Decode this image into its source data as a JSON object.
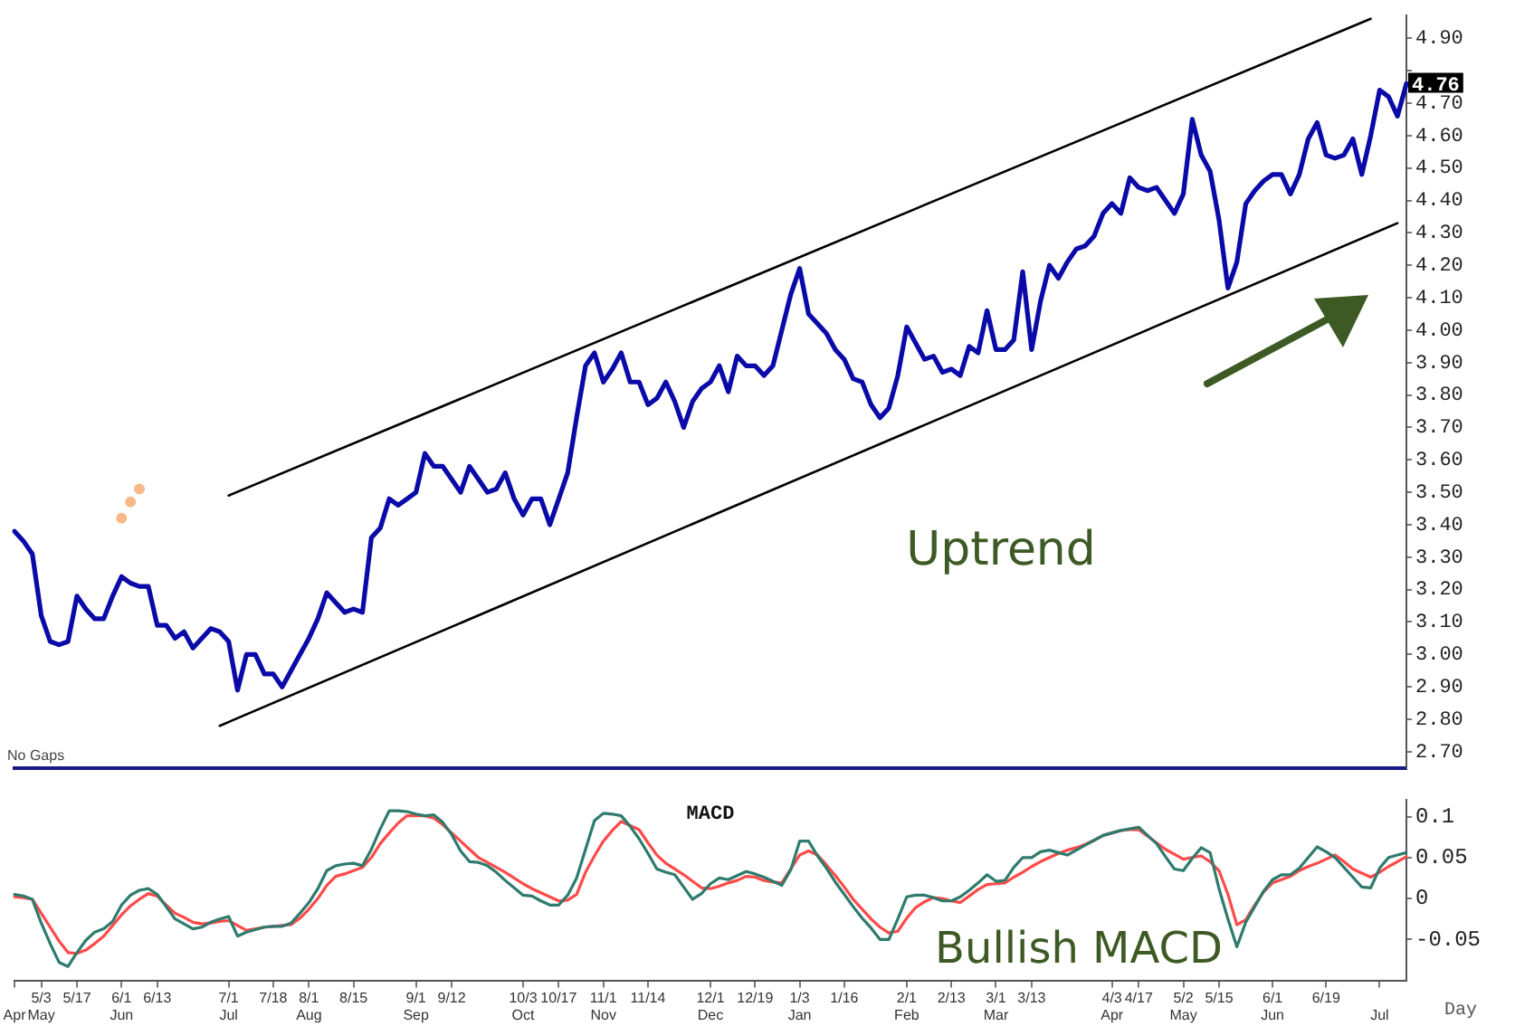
{
  "chart_data": [
    {
      "type": "line",
      "categories": [
        null,
        null,
        null,
        null,
        null,
        null,
        null,
        null,
        null,
        null,
        null,
        null,
        null,
        null,
        null,
        null,
        null,
        null,
        null,
        null,
        null,
        null,
        null,
        null,
        null,
        null,
        null,
        null,
        null,
        null,
        null,
        null,
        null,
        null,
        null,
        null,
        null,
        null,
        null,
        null,
        null,
        null,
        null,
        null,
        null,
        null,
        null,
        null,
        null,
        null,
        null,
        null,
        null,
        null,
        null,
        null,
        null,
        null,
        null,
        null,
        null,
        null,
        null,
        null,
        null,
        null,
        null,
        null,
        null,
        null,
        null,
        null,
        null,
        null,
        null,
        null,
        null,
        null,
        null,
        null,
        null,
        null,
        null,
        null,
        null,
        null,
        null,
        null,
        null,
        null,
        null,
        null,
        null,
        null,
        null,
        null,
        null,
        null,
        null,
        null,
        null,
        null,
        null,
        null,
        null,
        null,
        null,
        null,
        null,
        null,
        null,
        null,
        null,
        null,
        null,
        null,
        null,
        null,
        null,
        null,
        null,
        null,
        null,
        null,
        null,
        null,
        null,
        null,
        null,
        null,
        null,
        null,
        null,
        null,
        null,
        null,
        null,
        null,
        null,
        null,
        null,
        null,
        null,
        null,
        null,
        null,
        null,
        null,
        null,
        null,
        null,
        null,
        null,
        null,
        null,
        null,
        null
      ],
      "series": [
        {
          "color": "#0a0aa8",
          "values": [
            3.38,
            3.35,
            3.31,
            3.12,
            3.04,
            3.03,
            3.04,
            3.18,
            3.14,
            3.11,
            3.11,
            3.18,
            3.24,
            3.22,
            3.21,
            3.21,
            3.09,
            3.09,
            3.05,
            3.07,
            3.02,
            3.05,
            3.08,
            3.07,
            3.04,
            2.89,
            3.0,
            3.0,
            2.94,
            2.94,
            2.9,
            2.95,
            3.0,
            3.05,
            3.11,
            3.19,
            3.16,
            3.13,
            3.14,
            3.13,
            3.36,
            3.39,
            3.48,
            3.46,
            3.48,
            3.5,
            3.62,
            3.58,
            3.58,
            3.54,
            3.5,
            3.58,
            3.54,
            3.5,
            3.51,
            3.56,
            3.48,
            3.43,
            3.48,
            3.48,
            3.4,
            3.48,
            3.56,
            3.73,
            3.89,
            3.93,
            3.84,
            3.88,
            3.93,
            3.84,
            3.84,
            3.77,
            3.79,
            3.84,
            3.78,
            3.7,
            3.78,
            3.82,
            3.84,
            3.89,
            3.81,
            3.92,
            3.89,
            3.89,
            3.86,
            3.89,
            4.0,
            4.11,
            4.19,
            4.05,
            4.02,
            3.99,
            3.94,
            3.91,
            3.85,
            3.84,
            3.77,
            3.73,
            3.76,
            3.86,
            4.01,
            3.96,
            3.91,
            3.92,
            3.87,
            3.88,
            3.86,
            3.95,
            3.93,
            4.06,
            3.94,
            3.94,
            3.97,
            4.18,
            3.94,
            4.09,
            4.2,
            4.16,
            4.21,
            4.25,
            4.26,
            4.29,
            4.36,
            4.39,
            4.36,
            4.47,
            4.44,
            4.43,
            4.44,
            4.4,
            4.36,
            4.42,
            4.65,
            4.54,
            4.49,
            4.34,
            4.13,
            4.21,
            4.39,
            4.43,
            4.46,
            4.48,
            4.48,
            4.42,
            4.48,
            4.59,
            4.64,
            4.54,
            4.53,
            4.54,
            4.59,
            4.48,
            4.6,
            4.74,
            4.72,
            4.66,
            4.76
          ]
        },
        {
          "type": "line",
          "color": "#000000",
          "values": [
            null,
            null,
            null,
            null,
            null,
            null,
            null,
            null,
            null,
            null,
            null,
            null,
            null,
            null,
            null,
            null,
            null,
            null,
            null,
            null,
            null,
            null,
            null,
            null,
            3.49,
            null,
            null,
            null,
            null,
            null,
            null,
            null,
            null,
            null,
            null,
            null,
            null,
            null,
            null,
            null,
            null,
            null,
            null,
            null,
            null,
            null,
            null,
            null,
            null,
            null,
            null,
            null,
            null,
            null,
            null,
            null,
            null,
            null,
            null,
            null,
            null,
            null,
            null,
            null,
            null,
            null,
            null,
            null,
            null,
            null,
            null,
            null,
            null,
            null,
            null,
            null,
            null,
            null,
            null,
            null,
            null,
            null,
            null,
            null,
            null,
            null,
            null,
            null,
            null,
            null,
            null,
            null,
            null,
            null,
            null,
            null,
            null,
            null,
            null,
            null,
            null,
            null,
            null,
            null,
            null,
            null,
            null,
            null,
            null,
            null,
            null,
            null,
            null,
            null,
            null,
            null,
            null,
            null,
            null,
            null,
            null,
            null,
            null,
            null,
            null,
            null,
            null,
            null,
            null,
            null,
            null,
            null,
            null,
            null,
            null,
            null,
            null,
            null,
            null,
            null,
            null,
            null,
            null,
            null,
            null,
            null,
            null,
            null,
            null,
            null,
            null,
            null,
            4.96,
            null,
            null,
            null,
            null
          ]
        },
        {
          "type": "line",
          "color": "#000000",
          "values": [
            null,
            null,
            null,
            null,
            null,
            null,
            null,
            null,
            null,
            null,
            null,
            null,
            null,
            null,
            null,
            null,
            null,
            null,
            null,
            null,
            null,
            null,
            null,
            2.78,
            null,
            null,
            null,
            null,
            null,
            null,
            null,
            null,
            null,
            null,
            null,
            null,
            null,
            null,
            null,
            null,
            null,
            null,
            null,
            null,
            null,
            null,
            null,
            null,
            null,
            null,
            null,
            null,
            null,
            null,
            null,
            null,
            null,
            null,
            null,
            null,
            null,
            null,
            null,
            null,
            null,
            null,
            null,
            null,
            null,
            null,
            null,
            null,
            null,
            null,
            null,
            null,
            null,
            null,
            null,
            null,
            null,
            null,
            null,
            null,
            null,
            null,
            null,
            null,
            null,
            null,
            null,
            null,
            null,
            null,
            null,
            null,
            null,
            null,
            null,
            null,
            null,
            null,
            null,
            null,
            null,
            null,
            null,
            null,
            null,
            null,
            null,
            null,
            null,
            null,
            null,
            null,
            null,
            null,
            null,
            null,
            null,
            null,
            null,
            null,
            null,
            null,
            null,
            null,
            null,
            null,
            null,
            null,
            null,
            null,
            null,
            null,
            null,
            null,
            null,
            null,
            null,
            null,
            null,
            null,
            null,
            null,
            null,
            null,
            null,
            null,
            null,
            null,
            null,
            null,
            null,
            4.33,
            null
          ]
        },
        {
          "type": "scatter",
          "color": "#f7b98a",
          "values": [
            null,
            null,
            null,
            null,
            null,
            null,
            null,
            null,
            null,
            null,
            null,
            null,
            3.42,
            3.47,
            3.51,
            null,
            null,
            null,
            null,
            null,
            null,
            null,
            null,
            null,
            null,
            null,
            null,
            null,
            null,
            null,
            null,
            null,
            null,
            null,
            null,
            null,
            null,
            null,
            null,
            null,
            null,
            null,
            null,
            null,
            null,
            null,
            null,
            null,
            null,
            null,
            null,
            null,
            null,
            null,
            null,
            null,
            null,
            null,
            null,
            null,
            null,
            null,
            null,
            null,
            null,
            null,
            null,
            null,
            null,
            null,
            null,
            null,
            null,
            null,
            null,
            null,
            null,
            null,
            null,
            null,
            null,
            null,
            null,
            null,
            null,
            null,
            null,
            null,
            null,
            null,
            null,
            null,
            null,
            null,
            null,
            null,
            null,
            null,
            null,
            null,
            null,
            null,
            null,
            null,
            null,
            null,
            null,
            null,
            null,
            null,
            null,
            null,
            null,
            null,
            null,
            null,
            null,
            null,
            null,
            null,
            null,
            null,
            null,
            null,
            null,
            null,
            null,
            null,
            null,
            null,
            null,
            null,
            null,
            null,
            null,
            null,
            null,
            null,
            null,
            null,
            null,
            null,
            null,
            null,
            null,
            null,
            null,
            null,
            null,
            null,
            null,
            null,
            null,
            null,
            null,
            null,
            null
          ]
        }
      ],
      "ylim": [
        2.65,
        4.97
      ],
      "yticks": [
        {
          "value": 2.7,
          "label": "2.70"
        },
        {
          "value": 2.8,
          "label": "2.80"
        },
        {
          "value": 2.9,
          "label": "2.90"
        },
        {
          "value": 3.0,
          "label": "3.00"
        },
        {
          "value": 3.1,
          "label": "3.10"
        },
        {
          "value": 3.2,
          "label": "3.20"
        },
        {
          "value": 3.3,
          "label": "3.30"
        },
        {
          "value": 3.4,
          "label": "3.40"
        },
        {
          "value": 3.5,
          "label": "3.50"
        },
        {
          "value": 3.6,
          "label": "3.60"
        },
        {
          "value": 3.7,
          "label": "3.70"
        },
        {
          "value": 3.8,
          "label": "3.80"
        },
        {
          "value": 3.9,
          "label": "3.90"
        },
        {
          "value": 4.0,
          "label": "4.00"
        },
        {
          "value": 4.1,
          "label": "4.10"
        },
        {
          "value": 4.2,
          "label": "4.20"
        },
        {
          "value": 4.3,
          "label": "4.30"
        },
        {
          "value": 4.4,
          "label": "4.40"
        },
        {
          "value": 4.5,
          "label": "4.50"
        },
        {
          "value": 4.6,
          "label": "4.60"
        },
        {
          "value": 4.7,
          "label": "4.70"
        },
        {
          "value": 4.8,
          "label": null
        },
        {
          "value": 4.9,
          "label": "4.90"
        }
      ],
      "tick_labels": "y",
      "annotations": [
        "No Gaps",
        "Uptrend",
        {
          "text": "4.76",
          "y": 4.76
        }
      ]
    },
    {
      "type": "line",
      "title": "MACD",
      "xlabel": "Day",
      "categories": [
        "\nApr",
        null,
        null,
        "5/3\nMay",
        null,
        null,
        null,
        "5/17",
        null,
        null,
        null,
        null,
        "6/1\nJun",
        null,
        null,
        null,
        "6/13",
        null,
        null,
        null,
        null,
        null,
        null,
        null,
        "7/1\nJul",
        null,
        null,
        null,
        null,
        "7/18",
        null,
        null,
        null,
        "8/1\nAug",
        null,
        null,
        null,
        null,
        "8/15",
        null,
        null,
        null,
        null,
        null,
        null,
        "9/1\nSep",
        null,
        null,
        null,
        "9/12",
        null,
        null,
        null,
        null,
        null,
        null,
        null,
        "10/3\nOct",
        null,
        null,
        null,
        "10/17",
        null,
        null,
        null,
        null,
        "11/1\nNov",
        null,
        null,
        null,
        null,
        "11/14",
        null,
        null,
        null,
        null,
        null,
        null,
        "12/1\nDec",
        null,
        null,
        null,
        null,
        "12/19",
        null,
        null,
        null,
        null,
        "1/3\nJan",
        null,
        null,
        null,
        null,
        "1/16",
        null,
        null,
        null,
        null,
        null,
        null,
        "2/1\nFeb",
        null,
        null,
        null,
        null,
        "2/13",
        null,
        null,
        null,
        null,
        "3/1\nMar",
        null,
        null,
        null,
        "3/13",
        null,
        null,
        null,
        null,
        null,
        null,
        null,
        null,
        "4/3\nApr",
        null,
        null,
        "4/17",
        null,
        null,
        null,
        null,
        "5/2\nMay",
        null,
        null,
        null,
        "5/15",
        null,
        null,
        null,
        null,
        null,
        "6/1\nJun",
        null,
        null,
        null,
        null,
        null,
        "6/19",
        null,
        null,
        null,
        null,
        null,
        "\nJul",
        null,
        null,
        null
      ],
      "series": [
        {
          "color": "#2e7b6e",
          "values": [
            0.005,
            0.003,
            -0.001,
            -0.03,
            -0.055,
            -0.078,
            -0.083,
            -0.066,
            -0.051,
            -0.041,
            -0.037,
            -0.028,
            -0.008,
            0.004,
            0.01,
            0.012,
            0.005,
            -0.01,
            -0.025,
            -0.031,
            -0.037,
            -0.035,
            -0.029,
            -0.025,
            -0.022,
            -0.046,
            -0.041,
            -0.038,
            -0.035,
            -0.034,
            -0.034,
            -0.03,
            -0.018,
            -0.005,
            0.012,
            0.034,
            0.04,
            0.042,
            0.043,
            0.04,
            0.06,
            0.085,
            0.107,
            0.107,
            0.106,
            0.103,
            0.101,
            0.102,
            0.093,
            0.078,
            0.058,
            0.045,
            0.044,
            0.04,
            0.032,
            0.022,
            0.013,
            0.004,
            0.003,
            -0.003,
            -0.008,
            -0.008,
            0.004,
            0.025,
            0.06,
            0.095,
            0.104,
            0.103,
            0.101,
            0.088,
            0.073,
            0.055,
            0.036,
            0.032,
            0.029,
            0.014,
            -0.001,
            0.006,
            0.018,
            0.025,
            0.023,
            0.028,
            0.033,
            0.03,
            0.026,
            0.021,
            0.016,
            0.035,
            0.07,
            0.07,
            0.052,
            0.037,
            0.02,
            0.005,
            -0.01,
            -0.024,
            -0.036,
            -0.05,
            -0.05,
            -0.025,
            0.002,
            0.004,
            0.004,
            0.001,
            -0.003,
            -0.003,
            0.002,
            0.01,
            0.019,
            0.029,
            0.021,
            0.022,
            0.038,
            0.05,
            0.05,
            0.057,
            0.059,
            0.056,
            0.053,
            0.059,
            0.065,
            0.071,
            0.077,
            0.08,
            0.083,
            0.085,
            0.087,
            0.077,
            0.067,
            0.051,
            0.036,
            0.034,
            0.049,
            0.062,
            0.056,
            0.012,
            -0.025,
            -0.059,
            -0.029,
            -0.01,
            0.009,
            0.023,
            0.029,
            0.029,
            0.037,
            0.05,
            0.063,
            0.057,
            0.05,
            0.038,
            0.026,
            0.014,
            0.013,
            0.037,
            0.05,
            0.053,
            0.056
          ]
        },
        {
          "color": "#ff4a4a",
          "values": [
            0.002,
            0.001,
            -0.001,
            -0.018,
            -0.035,
            -0.052,
            -0.066,
            -0.067,
            -0.063,
            -0.055,
            -0.046,
            -0.033,
            -0.02,
            -0.009,
            -0.001,
            0.006,
            0.003,
            -0.008,
            -0.018,
            -0.023,
            -0.029,
            -0.031,
            -0.03,
            -0.028,
            -0.027,
            -0.033,
            -0.039,
            -0.037,
            -0.035,
            -0.034,
            -0.033,
            -0.032,
            -0.024,
            -0.013,
            0.0,
            0.016,
            0.027,
            0.03,
            0.034,
            0.038,
            0.05,
            0.067,
            0.08,
            0.092,
            0.101,
            0.101,
            0.101,
            0.098,
            0.09,
            0.08,
            0.07,
            0.06,
            0.05,
            0.044,
            0.038,
            0.032,
            0.025,
            0.018,
            0.012,
            0.007,
            0.002,
            -0.003,
            -0.002,
            0.005,
            0.032,
            0.052,
            0.07,
            0.083,
            0.094,
            0.089,
            0.084,
            0.068,
            0.053,
            0.043,
            0.036,
            0.029,
            0.021,
            0.013,
            0.012,
            0.015,
            0.019,
            0.022,
            0.027,
            0.026,
            0.022,
            0.02,
            0.019,
            0.036,
            0.053,
            0.058,
            0.053,
            0.041,
            0.028,
            0.014,
            -0.001,
            -0.013,
            -0.025,
            -0.035,
            -0.042,
            -0.04,
            -0.024,
            -0.011,
            -0.004,
            0.001,
            0.0,
            -0.003,
            -0.005,
            0.003,
            0.011,
            0.017,
            0.018,
            0.019,
            0.026,
            0.032,
            0.039,
            0.045,
            0.05,
            0.055,
            0.059,
            0.062,
            0.066,
            0.071,
            0.077,
            0.08,
            0.083,
            0.084,
            0.084,
            0.076,
            0.068,
            0.06,
            0.054,
            0.048,
            0.05,
            0.052,
            0.045,
            0.034,
            0.005,
            -0.032,
            -0.026,
            -0.008,
            0.008,
            0.019,
            0.023,
            0.027,
            0.034,
            0.039,
            0.043,
            0.048,
            0.053,
            0.045,
            0.036,
            0.031,
            0.026,
            0.032,
            0.039,
            0.045,
            0.051
          ]
        }
      ],
      "ylim": [
        -0.1,
        0.12
      ],
      "yticks": [
        -0.05,
        0,
        0.05,
        0.1
      ],
      "annotations": [
        "Bullish MACD"
      ]
    }
  ]
}
